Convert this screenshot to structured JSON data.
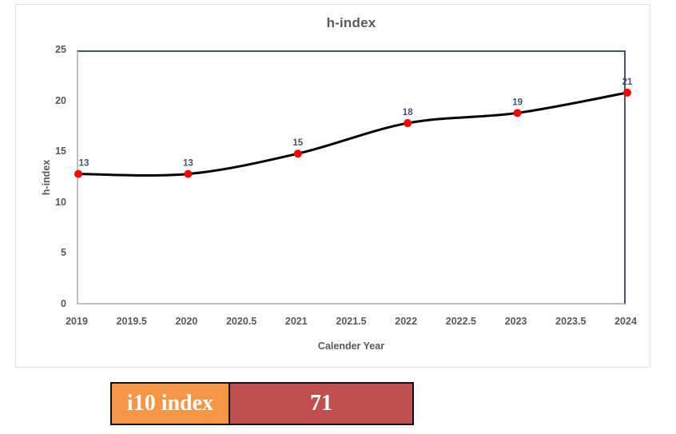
{
  "chart": {
    "title": "h-index",
    "x_axis_title": "Calender Year",
    "y_axis_title": "h-index",
    "x_ticks": [
      "2019",
      "2019.5",
      "2020",
      "2020.5",
      "2021",
      "2021.5",
      "2022",
      "2022.5",
      "2023",
      "2023.5",
      "2024"
    ],
    "y_ticks": [
      "25",
      "20",
      "15",
      "10",
      "5",
      "0"
    ]
  },
  "chart_data": {
    "type": "line",
    "title": "h-index",
    "xlabel": "Calender Year",
    "ylabel": "h-index",
    "x": [
      2019,
      2020,
      2021,
      2022,
      2023,
      2024
    ],
    "values": [
      13,
      13,
      15,
      18,
      19,
      21
    ],
    "data_labels": [
      "13",
      "13",
      "15",
      "18",
      "19",
      "21"
    ],
    "xlim": [
      2019,
      2024
    ],
    "ylim": [
      0,
      25
    ],
    "x_tick_step": 0.5,
    "y_tick_step": 5,
    "grid": false,
    "legend": false,
    "line_color": "#000000",
    "line_width": 3,
    "marker_color": "#ff0000",
    "marker_radius": 5,
    "data_label_color": "#44546a"
  },
  "summary_table": {
    "label": "i10 index",
    "value": "71",
    "label_bg": "#f79646",
    "value_bg": "#c0504d",
    "text_color": "#ffffff",
    "border_color": "#111111"
  }
}
